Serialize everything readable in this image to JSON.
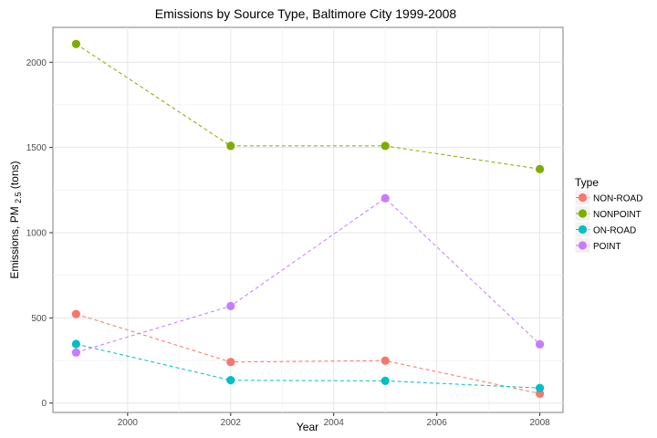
{
  "chart_data": {
    "type": "line",
    "title": "Emissions by Source Type, Baltimore City 1999-2008",
    "xlabel": "Year",
    "ylabel": {
      "main": "Emissions, PM",
      "subscript": "2.5",
      "suffix": " (tons)"
    },
    "x": [
      1999,
      2002,
      2005,
      2008
    ],
    "xlim": [
      1998.55,
      2008.45
    ],
    "ylim": [
      -55,
      2205
    ],
    "x_ticks": [
      2000,
      2002,
      2004,
      2006,
      2008
    ],
    "y_ticks": [
      0,
      500,
      1000,
      1500,
      2000
    ],
    "grid": true,
    "line_style": "dashed",
    "legend": {
      "title": "Type",
      "position": "right"
    },
    "series": [
      {
        "name": "NON-ROAD",
        "color": "#F8766D",
        "values": [
          522.9,
          241.2,
          248.9,
          55.8
        ]
      },
      {
        "name": "NONPOINT",
        "color": "#7CAE00",
        "values": [
          2107.6,
          1509.5,
          1509.5,
          1373.2
        ]
      },
      {
        "name": "ON-ROAD",
        "color": "#00BFC4",
        "values": [
          346.8,
          134.3,
          130.4,
          88.3
        ]
      },
      {
        "name": "POINT",
        "color": "#C77CFF",
        "values": [
          296.8,
          569.3,
          1202.5,
          344.98
        ]
      }
    ]
  }
}
